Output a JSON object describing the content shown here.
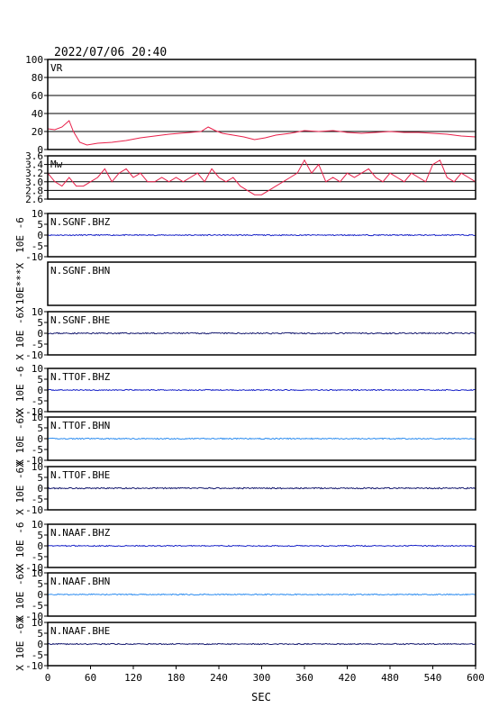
{
  "header": {
    "datetime": "2022/07/06 20:40"
  },
  "xaxis": {
    "label": "SEC",
    "min": 0,
    "max": 600,
    "ticks": [
      0,
      60,
      120,
      180,
      240,
      300,
      360,
      420,
      480,
      540,
      600
    ]
  },
  "colors": {
    "red": "#e8204a",
    "blue": "#1a24c8",
    "light_blue": "#2c8cf0",
    "navy": "#14186e",
    "axis": "#000000"
  },
  "chart_data": [
    {
      "id": "vr",
      "type": "line",
      "label": "VR",
      "ylim": [
        0,
        100
      ],
      "yticks": [
        "100",
        "80",
        "60",
        "40",
        "20",
        "0"
      ],
      "color": "red",
      "gridlines": [
        20,
        40,
        60,
        80
      ],
      "x": [
        0,
        10,
        20,
        30,
        36,
        45,
        55,
        70,
        90,
        110,
        130,
        150,
        170,
        185,
        200,
        215,
        225,
        235,
        245,
        260,
        275,
        290,
        305,
        320,
        340,
        360,
        380,
        400,
        420,
        440,
        460,
        480,
        500,
        520,
        540,
        560,
        580,
        600
      ],
      "values": [
        23,
        22,
        25,
        32,
        20,
        8,
        5,
        7,
        8,
        10,
        13,
        15,
        17,
        18,
        19,
        20,
        25,
        21,
        18,
        16,
        14,
        11,
        13,
        16,
        18,
        21,
        20,
        21,
        19,
        18,
        19,
        20,
        19,
        19,
        18,
        17,
        15,
        14
      ]
    },
    {
      "id": "mw",
      "type": "line",
      "label": "Mw",
      "ylim": [
        2.6,
        3.6
      ],
      "yticks": [
        "3.6",
        "3.4",
        "3.2",
        "3.0",
        "2.8",
        "2.6"
      ],
      "color": "red",
      "gridlines": [
        2.8,
        3.0,
        3.2,
        3.4
      ],
      "x": [
        0,
        10,
        20,
        30,
        40,
        50,
        60,
        70,
        80,
        90,
        100,
        110,
        120,
        130,
        140,
        150,
        160,
        170,
        180,
        190,
        200,
        210,
        220,
        230,
        240,
        250,
        260,
        270,
        280,
        290,
        300,
        310,
        320,
        330,
        340,
        350,
        360,
        370,
        380,
        390,
        400,
        410,
        420,
        430,
        440,
        450,
        460,
        470,
        480,
        490,
        500,
        510,
        520,
        530,
        540,
        550,
        560,
        570,
        580,
        590,
        600
      ],
      "values": [
        3.2,
        3.0,
        2.9,
        3.1,
        2.9,
        2.9,
        3.0,
        3.1,
        3.3,
        3.0,
        3.2,
        3.3,
        3.1,
        3.2,
        3.0,
        3.0,
        3.1,
        3.0,
        3.1,
        3.0,
        3.1,
        3.2,
        3.0,
        3.3,
        3.1,
        3.0,
        3.1,
        2.9,
        2.8,
        2.7,
        2.7,
        2.8,
        2.9,
        3.0,
        3.1,
        3.2,
        3.5,
        3.2,
        3.4,
        3.0,
        3.1,
        3.0,
        3.2,
        3.1,
        3.2,
        3.3,
        3.1,
        3.0,
        3.2,
        3.1,
        3.0,
        3.2,
        3.1,
        3.0,
        3.4,
        3.5,
        3.1,
        3.0,
        3.2,
        3.1,
        3.0
      ]
    },
    {
      "id": "sgnf_bhz",
      "type": "line",
      "label": "N.SGNF.BHZ",
      "ylim": [
        -10,
        10
      ],
      "yticks": [
        "10",
        "5",
        "0",
        "-5",
        "-10"
      ],
      "ylabel": "10E -6",
      "color": "blue",
      "amplitude": 0.25,
      "seed": 11,
      "values": []
    },
    {
      "id": "sgnf_bhn",
      "type": "line",
      "label": "N.SGNF.BHN",
      "ylim": [],
      "yticks": [],
      "ylabel": "10E***X",
      "color": "blue",
      "amplitude": 0,
      "seed": 0,
      "values": []
    },
    {
      "id": "sgnf_bhe",
      "type": "line",
      "label": "N.SGNF.BHE",
      "ylim": [
        -10,
        10
      ],
      "yticks": [
        "10",
        "5",
        "0",
        "-5",
        "-10"
      ],
      "ylabel": "X 10E -6X",
      "color": "navy",
      "amplitude": 0.3,
      "seed": 23,
      "values": []
    },
    {
      "id": "ttof_bhz",
      "type": "line",
      "label": "N.TTOF.BHZ",
      "ylim": [
        -10,
        10
      ],
      "yticks": [
        "10",
        "5",
        "0",
        "-5",
        "-10"
      ],
      "ylabel": "X 10E -6",
      "color": "blue",
      "amplitude": 0.25,
      "seed": 37,
      "values": []
    },
    {
      "id": "ttof_bhn",
      "type": "line",
      "label": "N.TTOF.BHN",
      "ylim": [
        -10,
        10
      ],
      "yticks": [
        "10",
        "5",
        "0",
        "-5",
        "-10"
      ],
      "ylabel": "X 10E -6X",
      "color": "light_blue",
      "amplitude": 0.25,
      "seed": 41,
      "values": []
    },
    {
      "id": "ttof_bhe",
      "type": "line",
      "label": "N.TTOF.BHE",
      "ylim": [
        -10,
        10
      ],
      "yticks": [
        "10",
        "5",
        "0",
        "-5",
        "-10"
      ],
      "ylabel": "X 10E -6X",
      "color": "navy",
      "amplitude": 0.3,
      "seed": 53,
      "values": []
    },
    {
      "id": "naaf_bhz",
      "type": "line",
      "label": "N.NAAF.BHZ",
      "ylim": [
        -10,
        10
      ],
      "yticks": [
        "10",
        "5",
        "0",
        "-5",
        "-10"
      ],
      "ylabel": "X 10E -6",
      "color": "blue",
      "amplitude": 0.25,
      "seed": 67,
      "values": []
    },
    {
      "id": "naaf_bhn",
      "type": "line",
      "label": "N.NAAF.BHN",
      "ylim": [
        -10,
        10
      ],
      "yticks": [
        "10",
        "5",
        "0",
        "-5",
        "-10"
      ],
      "ylabel": "X 10E -6X",
      "color": "light_blue",
      "amplitude": 0.25,
      "seed": 71,
      "values": []
    },
    {
      "id": "naaf_bhe",
      "type": "line",
      "label": "N.NAAF.BHE",
      "ylim": [
        -10,
        10
      ],
      "yticks": [
        "10",
        "5",
        "0",
        "-5",
        "-10"
      ],
      "ylabel": "X 10E -6X",
      "color": "navy",
      "amplitude": 0.25,
      "seed": 83,
      "values": []
    }
  ]
}
